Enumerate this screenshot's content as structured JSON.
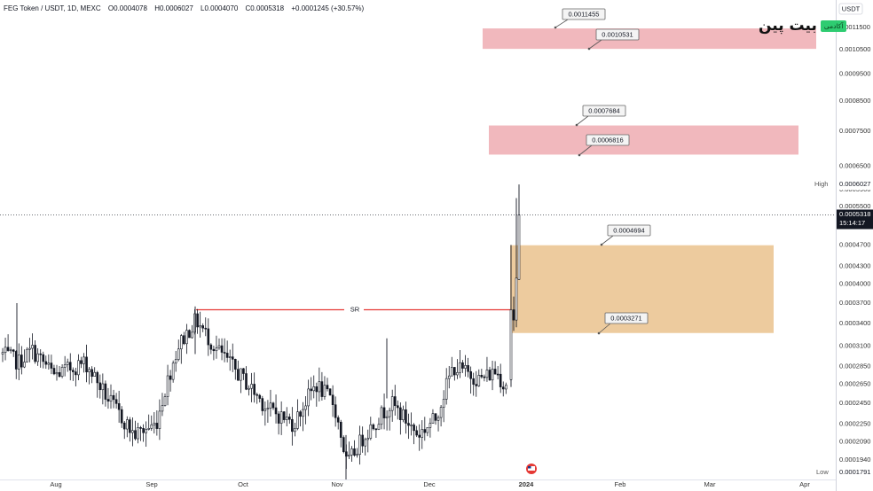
{
  "header": {
    "symbol": "FEG Token / USDT, 1D, MEXC",
    "open": "O0.0004078",
    "high": "H0.0006027",
    "low": "L0.0004070",
    "close": "C0.0005318",
    "change": "+0.0001245 (+30.57%)"
  },
  "logo": {
    "text": "بیت پین",
    "badge": "آکادمی"
  },
  "price_axis": {
    "currency": "USDT",
    "ticks": [
      "0.0011500",
      "0.0010500",
      "0.0009500",
      "0.0008500",
      "0.0007500",
      "0.0006500",
      "0.0005900",
      "0.0005500",
      "0.0004700",
      "0.0004300",
      "0.0004000",
      "0.0003700",
      "0.0003400",
      "0.0003100",
      "0.0002850",
      "0.0002650",
      "0.0002450",
      "0.0002250",
      "0.0002090",
      "0.0001940"
    ],
    "high_label": "High",
    "high_value": "0.0006027",
    "last_value": "0.0005318",
    "countdown": "15:14:17",
    "low_label": "Low",
    "low_value": "0.0001791"
  },
  "time_axis": [
    "Aug",
    "Sep",
    "Oct",
    "Nov",
    "Dec",
    "2024",
    "Feb",
    "Mar",
    "Apr"
  ],
  "sr_label": "SR",
  "colors": {
    "up": "#089981",
    "down": "#131722",
    "candle": "#131722",
    "supply_zone": "#f0b4b9",
    "demand_zone": "#ecc899",
    "sr_line": "#e53935",
    "lastline": "#131722"
  },
  "chart_data": {
    "type": "candlestick",
    "ylabel": "USDT",
    "log_scale": true,
    "ylim": [
      0.000179,
      0.00122
    ],
    "x_labels": [
      "Aug",
      "Sep",
      "Oct",
      "Nov",
      "Dec",
      "2024",
      "Feb",
      "Mar",
      "Apr"
    ],
    "last": {
      "open": 0.0004078,
      "high": 0.0006027,
      "low": 0.000407,
      "close": 0.0005318,
      "change": 0.0001245,
      "change_pct": 30.57
    },
    "session_high": 0.0006027,
    "session_low": 0.0001791,
    "zones": [
      {
        "kind": "supply",
        "top": 0.0011455,
        "bottom": 0.0010531
      },
      {
        "kind": "supply",
        "top": 0.0007684,
        "bottom": 0.0006816
      },
      {
        "kind": "demand",
        "top": 0.0004694,
        "bottom": 0.0003271
      }
    ],
    "callouts": [
      "0.0011455",
      "0.0010531",
      "0.0007684",
      "0.0006816",
      "0.0004694",
      "0.0003271"
    ],
    "sr_level": 0.00036
  }
}
